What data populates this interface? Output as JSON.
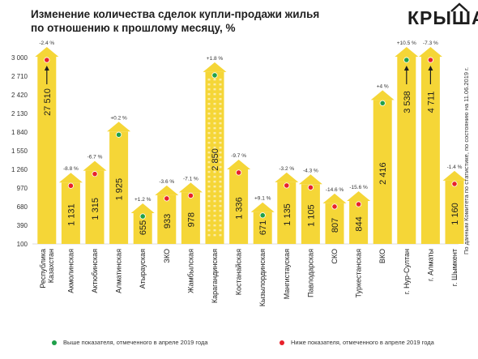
{
  "header": {
    "title_line1": "Изменение количества сделок купли-продажи жилья",
    "title_line2": "по отношению к прошлому месяцу, %",
    "logo": "КРЫША"
  },
  "source_note": "По данным Комитета по статистике, по состоянию на 11.06.2019 г.",
  "legend": {
    "above": {
      "label": "Выше показателя, отмеченного в апреле 2019 года",
      "color": "#1fa04a"
    },
    "below": {
      "label": "Ниже показателя, отмеченного в апреле 2019 года",
      "color": "#e8202a"
    }
  },
  "colors": {
    "bar": "#f5d637",
    "bar_dark": "#e8bf1a",
    "text": "#1e1e1e"
  },
  "chart_data": {
    "type": "bar",
    "yticks": [
      100,
      390,
      680,
      970,
      1260,
      1550,
      1840,
      2130,
      2420,
      2710,
      3000
    ],
    "ylim": [
      100,
      3000
    ],
    "categories": [
      "Республика Казахстан",
      "Акмолинская",
      "Актюбинская",
      "Алматинская",
      "Атырауская",
      "ЗКО",
      "Жамбылская",
      "Карагандинская",
      "Костанайская",
      "Кызылординская",
      "Мангистауская",
      "Павлодарская",
      "СКО",
      "Туркестанская",
      "ВКО",
      "г. Нур-Султан",
      "г. Алматы",
      "г. Шымкент"
    ],
    "category_lines": [
      [
        "Республика",
        "Казахстан"
      ],
      [
        "Акмолинская"
      ],
      [
        "Актюбинская"
      ],
      [
        "Алматинская"
      ],
      [
        "Атырауская"
      ],
      [
        "ЗКО"
      ],
      [
        "Жамбылская"
      ],
      [
        "Карагандинская"
      ],
      [
        "Костанайская"
      ],
      [
        "Кызылординская"
      ],
      [
        "Мангистауская"
      ],
      [
        "Павлодарская"
      ],
      [
        "СКО"
      ],
      [
        "Туркестанская"
      ],
      [
        "ВКО"
      ],
      [
        "г. Нур-Султан"
      ],
      [
        "г. Алматы"
      ],
      [
        "г. Шымкент"
      ]
    ],
    "values": [
      27510,
      1131,
      1315,
      1925,
      655,
      933,
      978,
      2850,
      1336,
      671,
      1135,
      1105,
      807,
      844,
      2416,
      3538,
      4711,
      1160
    ],
    "value_labels": [
      "27 510",
      "1 131",
      "1 315",
      "1 925",
      "655",
      "933",
      "978",
      "2 850",
      "1 336",
      "671",
      "1 135",
      "1 105",
      "807",
      "844",
      "2 416",
      "3 538",
      "4 711",
      "1 160"
    ],
    "changes": [
      "-2.4 %",
      "-8.8 %",
      "-6.7 %",
      "+0.2 %",
      "+1.2 %",
      "-3.6 %",
      "-7.1 %",
      "+1.8 %",
      "-9.7 %",
      "+9.1 %",
      "-3.2 %",
      "-4.3 %",
      "-14.6 %",
      "-15.6 %",
      "+4 %",
      "+10.5 %",
      "-7.3 %",
      "-1.4 %"
    ],
    "markers": [
      "below",
      "below",
      "below",
      "above",
      "above",
      "below",
      "below",
      "above",
      "below",
      "above",
      "below",
      "below",
      "below",
      "below",
      "above",
      "above",
      "below",
      "below"
    ],
    "off_scale": [
      true,
      false,
      false,
      false,
      false,
      false,
      false,
      false,
      false,
      false,
      false,
      false,
      false,
      false,
      false,
      true,
      true,
      false
    ]
  }
}
